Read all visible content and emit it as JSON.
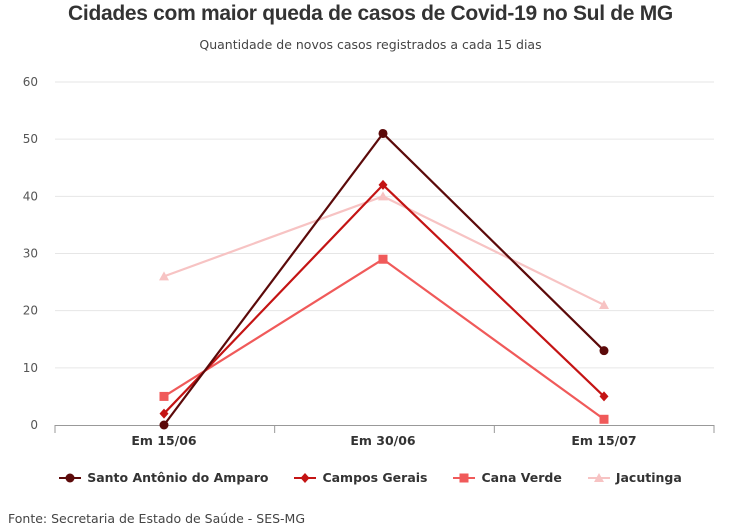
{
  "title": "Cidades com maior queda de casos de Covid-19 no Sul de MG",
  "subtitle": "Quantidade de novos casos registrados a cada 15 dias",
  "source": "Fonte: Secretaria de Estado de Saúde - SES-MG",
  "chart_data": {
    "type": "line",
    "categories": [
      "Em 15/06",
      "Em 30/06",
      "Em 15/07"
    ],
    "ylim": [
      0,
      60
    ],
    "yticks": [
      0,
      10,
      20,
      30,
      40,
      50,
      60
    ],
    "grid": true,
    "legend_position": "bottom",
    "series": [
      {
        "name": "Santo Antônio do Amparo",
        "values": [
          0,
          51,
          13
        ],
        "color": "#5c0a0a",
        "marker": "circle"
      },
      {
        "name": "Campos Gerais",
        "values": [
          2,
          42,
          5
        ],
        "color": "#c41414",
        "marker": "diamond"
      },
      {
        "name": "Cana Verde",
        "values": [
          5,
          29,
          1
        ],
        "color": "#f05a5a",
        "marker": "square"
      },
      {
        "name": "Jacutinga",
        "values": [
          26,
          40,
          21
        ],
        "color": "#f7c3c3",
        "marker": "triangle"
      }
    ]
  }
}
